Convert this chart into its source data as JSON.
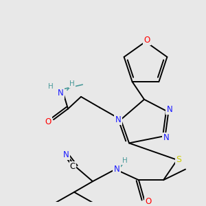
{
  "bg_color": "#e8e8e8",
  "C": "#000000",
  "N": "#1a1aff",
  "O": "#ff0000",
  "S": "#cccc00",
  "H": "#4a9a9a",
  "lw": 1.4,
  "fs": 7.8
}
